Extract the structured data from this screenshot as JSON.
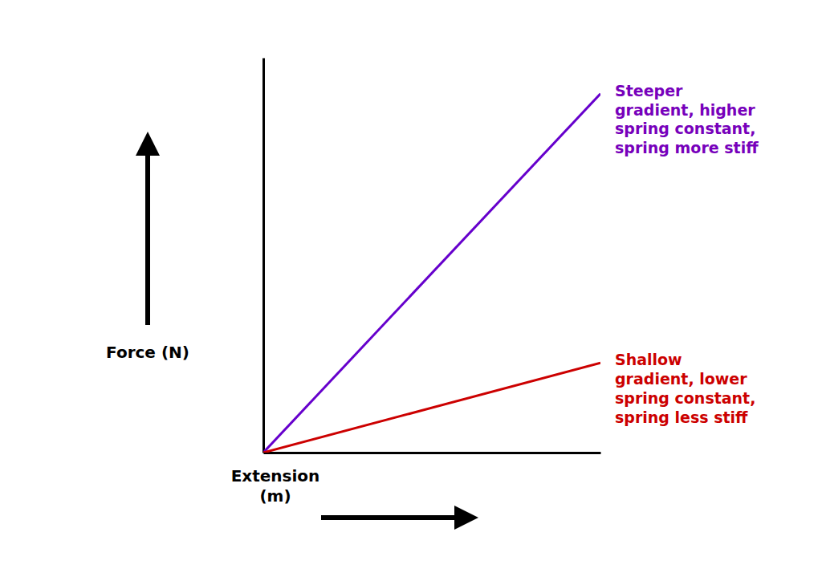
{
  "chart_data": {
    "type": "line",
    "x": [
      0,
      1
    ],
    "series": [
      {
        "color": "#6600cc",
        "values": [
          0,
          2.0
        ]
      },
      {
        "color": "#cc0000",
        "values": [
          0,
          0.5
        ]
      }
    ],
    "xlim": [
      0,
      1
    ],
    "ylim": [
      0,
      2.2
    ],
    "tick_labels": false,
    "x_label": "Extension\n(m)",
    "y_label": "Force (N)",
    "annotations": [
      {
        "text": "Steeper\ngradient, higher\nspring constant,\nspring more stiff",
        "color": "#7700bb"
      },
      {
        "text": "Shallow\ngradient, lower\nspring constant,\nspring less stiff",
        "color": "#cc0000"
      }
    ]
  }
}
